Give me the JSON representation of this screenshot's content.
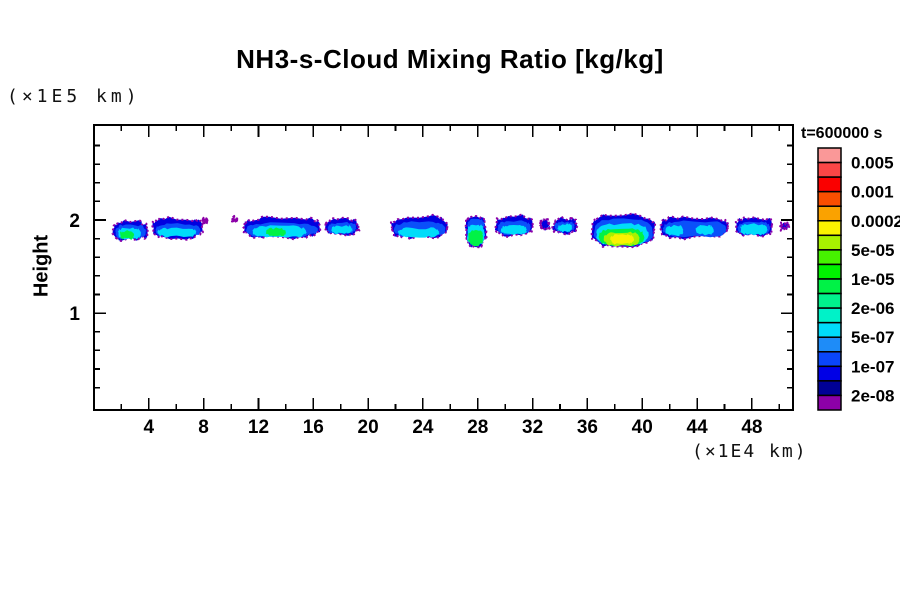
{
  "page": {
    "background": "#FFFFFF",
    "frame_color": "#000000"
  },
  "chart_data": {
    "type": "heatmap",
    "subtype": "filled-contour cloud mixing ratio plot",
    "title": "NH3-s-Cloud Mixing Ratio [kg/kg]",
    "xlabel": "(×1E4 km)",
    "ylabel": "Height",
    "ylabel_units": "(×1E5 km)",
    "x_range": [
      0,
      51
    ],
    "y_range": [
      -0.04,
      3.02
    ],
    "x_major_ticks": [
      4,
      8,
      12,
      16,
      20,
      24,
      28,
      32,
      36,
      40,
      44,
      48
    ],
    "x_minor_tick_step": 2,
    "y_major_ticks": [
      1,
      2
    ],
    "y_minor_tick_step": 0.2,
    "grid": false,
    "legend": {
      "position": "right",
      "title": "t=600000 s",
      "labels": [
        "0.005",
        "0.001",
        "0.0002",
        "5e-05",
        "1e-05",
        "2e-06",
        "5e-07",
        "1e-07",
        "2e-08"
      ],
      "colors_top_to_bottom": [
        "#FA9898",
        "#FA4646",
        "#FA0000",
        "#FA4E00",
        "#FAA200",
        "#FAF200",
        "#A8F200",
        "#46F200",
        "#00F200",
        "#00F246",
        "#00F28C",
        "#00F2C8",
        "#00DCFA",
        "#1E8CF8",
        "#0A46FA",
        "#0000E6",
        "#000096",
        "#8C00A8"
      ],
      "outline_color": "#8C00A8"
    },
    "clouds": [
      {
        "x": [
          1.4,
          3.9
        ],
        "y": [
          1.79,
          1.98
        ],
        "layers": [
          {
            "c": "#0000E0",
            "f": [
              0,
              0,
              1,
              1
            ]
          },
          {
            "c": "#0A50FA",
            "f": [
              0.06,
              0.18,
              0.95,
              0.96
            ]
          },
          {
            "c": "#00DCFA",
            "f": [
              0.14,
              0.36,
              0.8,
              0.97
            ]
          },
          {
            "c": "#00F246",
            "f": [
              0.2,
              0.52,
              0.6,
              0.97
            ]
          }
        ]
      },
      {
        "x": [
          4.3,
          7.9
        ],
        "y": [
          1.81,
          2.02
        ],
        "layers": [
          {
            "c": "#0000E0",
            "f": [
              0,
              0,
              1,
              1
            ]
          },
          {
            "c": "#0A50FA",
            "f": [
              0.05,
              0.3,
              0.96,
              0.96
            ]
          },
          {
            "c": "#00DCFA",
            "f": [
              0.1,
              0.52,
              0.88,
              0.94
            ]
          }
        ]
      },
      {
        "x": [
          7.95,
          8.25
        ],
        "y": [
          1.97,
          2.01
        ],
        "layers": [
          {
            "c": "#8C00A8",
            "f": [
              0,
              0,
              1,
              1
            ]
          }
        ]
      },
      {
        "x": [
          10.1,
          10.4
        ],
        "y": [
          1.98,
          2.02
        ],
        "layers": [
          {
            "c": "#8C00A8",
            "f": [
              0,
              0,
              1,
              1
            ]
          }
        ]
      },
      {
        "x": [
          10.9,
          16.5
        ],
        "y": [
          1.81,
          2.03
        ],
        "layers": [
          {
            "c": "#0000E0",
            "f": [
              0,
              0,
              1,
              1
            ]
          },
          {
            "c": "#0A50FA",
            "f": [
              0.04,
              0.28,
              0.97,
              0.95
            ]
          },
          {
            "c": "#00DCFA",
            "f": [
              0.12,
              0.45,
              0.82,
              0.95
            ]
          },
          {
            "c": "#00F246",
            "f": [
              0.3,
              0.55,
              0.55,
              0.9
            ]
          }
        ]
      },
      {
        "x": [
          16.9,
          19.3
        ],
        "y": [
          1.84,
          2.01
        ],
        "layers": [
          {
            "c": "#0000E0",
            "f": [
              0,
              0,
              1,
              1
            ]
          },
          {
            "c": "#0A50FA",
            "f": [
              0.07,
              0.25,
              0.93,
              0.92
            ]
          },
          {
            "c": "#00DCFA",
            "f": [
              0.18,
              0.42,
              0.8,
              0.9
            ]
          }
        ]
      },
      {
        "x": [
          21.7,
          25.8
        ],
        "y": [
          1.81,
          2.04
        ],
        "layers": [
          {
            "c": "#0000E0",
            "f": [
              0,
              0,
              1,
              1
            ]
          },
          {
            "c": "#0A50FA",
            "f": [
              0.05,
              0.28,
              0.96,
              0.93
            ]
          },
          {
            "c": "#00DCFA",
            "f": [
              0.12,
              0.55,
              0.85,
              0.95
            ]
          }
        ]
      },
      {
        "x": [
          27.1,
          28.6
        ],
        "y": [
          1.72,
          2.04
        ],
        "layers": [
          {
            "c": "#0000E0",
            "f": [
              0,
              0,
              1,
              1
            ]
          },
          {
            "c": "#0A50FA",
            "f": [
              0.1,
              0.1,
              0.9,
              0.5
            ]
          },
          {
            "c": "#00DCFA",
            "f": [
              0.08,
              0.28,
              0.92,
              0.95
            ]
          },
          {
            "c": "#00F246",
            "f": [
              0.14,
              0.46,
              0.86,
              0.97
            ]
          }
        ]
      },
      {
        "x": [
          29.3,
          32.0
        ],
        "y": [
          1.83,
          2.04
        ],
        "layers": [
          {
            "c": "#0000E0",
            "f": [
              0,
              0,
              1,
              1
            ]
          },
          {
            "c": "#0A50FA",
            "f": [
              0.06,
              0.25,
              0.94,
              0.93
            ]
          },
          {
            "c": "#00DCFA",
            "f": [
              0.14,
              0.48,
              0.84,
              0.93
            ]
          }
        ]
      },
      {
        "x": [
          32.6,
          33.2
        ],
        "y": [
          1.9,
          2.0
        ],
        "layers": [
          {
            "c": "#0000E0",
            "f": [
              0,
              0,
              1,
              1
            ]
          }
        ]
      },
      {
        "x": [
          33.5,
          35.2
        ],
        "y": [
          1.86,
          2.02
        ],
        "layers": [
          {
            "c": "#0000E0",
            "f": [
              0,
              0,
              1,
              1
            ]
          },
          {
            "c": "#0A50FA",
            "f": [
              0.08,
              0.25,
              0.92,
              0.9
            ]
          },
          {
            "c": "#00DCFA",
            "f": [
              0.2,
              0.42,
              0.82,
              0.9
            ]
          }
        ]
      },
      {
        "x": [
          36.3,
          40.9
        ],
        "y": [
          1.72,
          2.06
        ],
        "layers": [
          {
            "c": "#0000E0",
            "f": [
              0,
              0,
              1,
              1
            ]
          },
          {
            "c": "#0A50FA",
            "f": [
              0.04,
              0.14,
              0.97,
              0.97
            ]
          },
          {
            "c": "#00DCFA",
            "f": [
              0.08,
              0.3,
              0.9,
              0.98
            ]
          },
          {
            "c": "#00F246",
            "f": [
              0.12,
              0.44,
              0.83,
              0.99
            ]
          },
          {
            "c": "#A8F200",
            "f": [
              0.2,
              0.56,
              0.76,
              0.98
            ]
          },
          {
            "c": "#FAF200",
            "f": [
              0.3,
              0.64,
              0.67,
              0.94
            ]
          }
        ]
      },
      {
        "x": [
          41.3,
          46.3
        ],
        "y": [
          1.81,
          2.03
        ],
        "layers": [
          {
            "c": "#0000E0",
            "f": [
              0,
              0,
              1,
              1
            ]
          },
          {
            "c": "#0A50FA",
            "f": [
              0.04,
              0.2,
              0.96,
              0.96
            ]
          },
          {
            "c": "#00DCFA",
            "f": [
              0.08,
              0.42,
              0.34,
              0.9
            ]
          },
          {
            "c": "#00DCFA",
            "f": [
              0.52,
              0.4,
              0.78,
              0.85
            ]
          }
        ]
      },
      {
        "x": [
          46.8,
          49.5
        ],
        "y": [
          1.83,
          2.02
        ],
        "layers": [
          {
            "c": "#0000E0",
            "f": [
              0,
              0,
              1,
              1
            ]
          },
          {
            "c": "#0A50FA",
            "f": [
              0.06,
              0.22,
              0.94,
              0.94
            ]
          },
          {
            "c": "#00DCFA",
            "f": [
              0.14,
              0.34,
              0.86,
              0.93
            ]
          }
        ]
      },
      {
        "x": [
          50.1,
          50.65
        ],
        "y": [
          1.9,
          1.97
        ],
        "layers": [
          {
            "c": "#0000E0",
            "f": [
              0,
              0,
              1,
              1
            ]
          }
        ]
      }
    ]
  }
}
